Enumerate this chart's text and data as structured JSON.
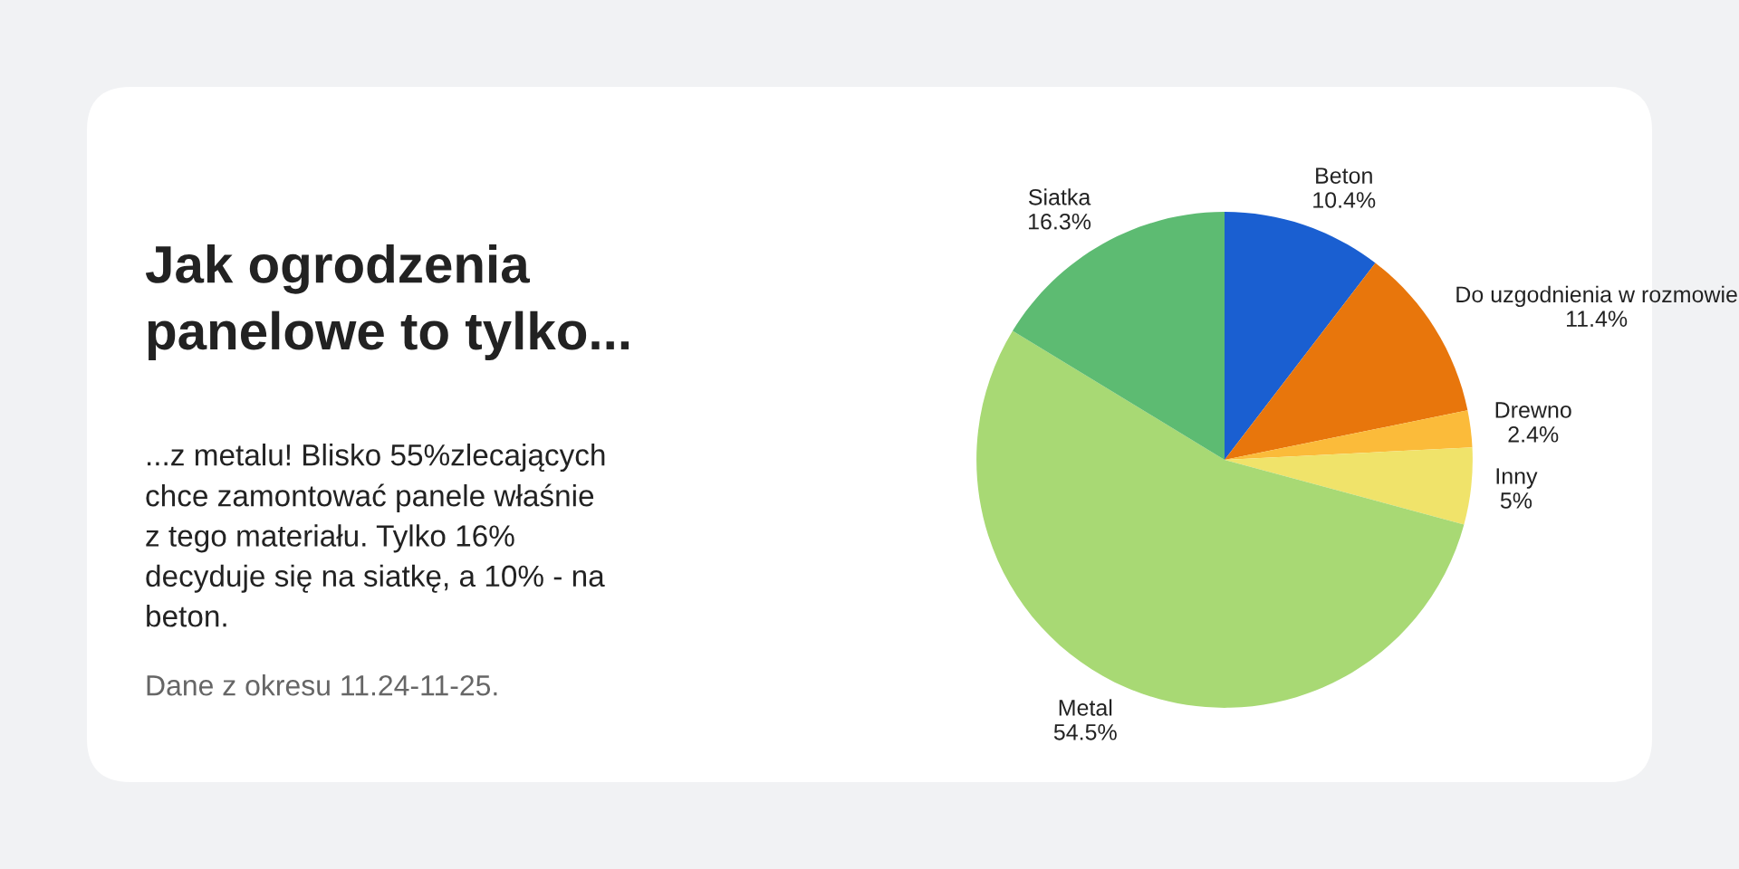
{
  "chart_data": {
    "type": "pie",
    "title": "Jak ogrodzenia\npanelowe to tylko...",
    "subtitle": "...z metalu! Blisko 55%zlecających\nchce zamontować panele właśnie\nz tego materiału. Tylko 16%\ndecyduje się na siatkę, a 10% - na\nbeton.",
    "annotations": [
      "Dane z okresu 11.24-11-25."
    ],
    "categories": [
      "Beton",
      "Do uzgodnienia w rozmowie",
      "Drewno",
      "Inny",
      "Metal",
      "Siatka"
    ],
    "values": [
      10.4,
      11.4,
      2.4,
      5,
      54.5,
      16.3
    ],
    "colors": [
      "#1a5fd1",
      "#e8760c",
      "#fbbb3a",
      "#f0e36a",
      "#a8d974",
      "#5dbb72"
    ],
    "value_labels": [
      "10.4%",
      "11.4%",
      "2.4%",
      "5%",
      "54.5%",
      "16.3%"
    ]
  }
}
